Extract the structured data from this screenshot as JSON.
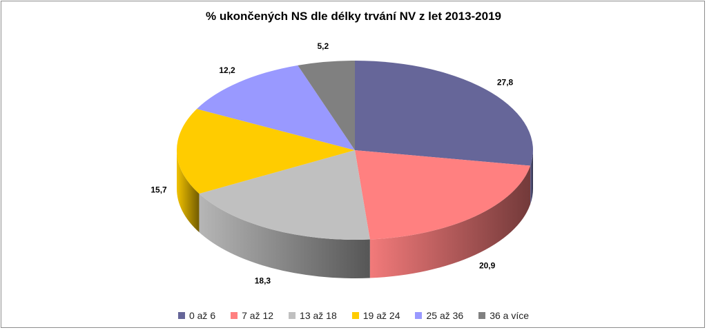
{
  "chart_data": {
    "type": "pie",
    "title": "% ukončených NS dle délky trvání NV z let 2013-2019",
    "categories": [
      "0 až 6",
      "7 až 12",
      "13 až 18",
      "19 až 24",
      "25 až 36",
      "36 a více"
    ],
    "values": [
      27.8,
      20.9,
      18.3,
      15.7,
      12.2,
      5.2
    ],
    "labels": [
      "27,8",
      "20,9",
      "18,3",
      "15,7",
      "12,2",
      "5,2"
    ],
    "colors": [
      "#666699",
      "#ff8080",
      "#c0c0c0",
      "#ffcc00",
      "#9999ff",
      "#808080"
    ],
    "legend_position": "bottom",
    "style": "3d"
  }
}
